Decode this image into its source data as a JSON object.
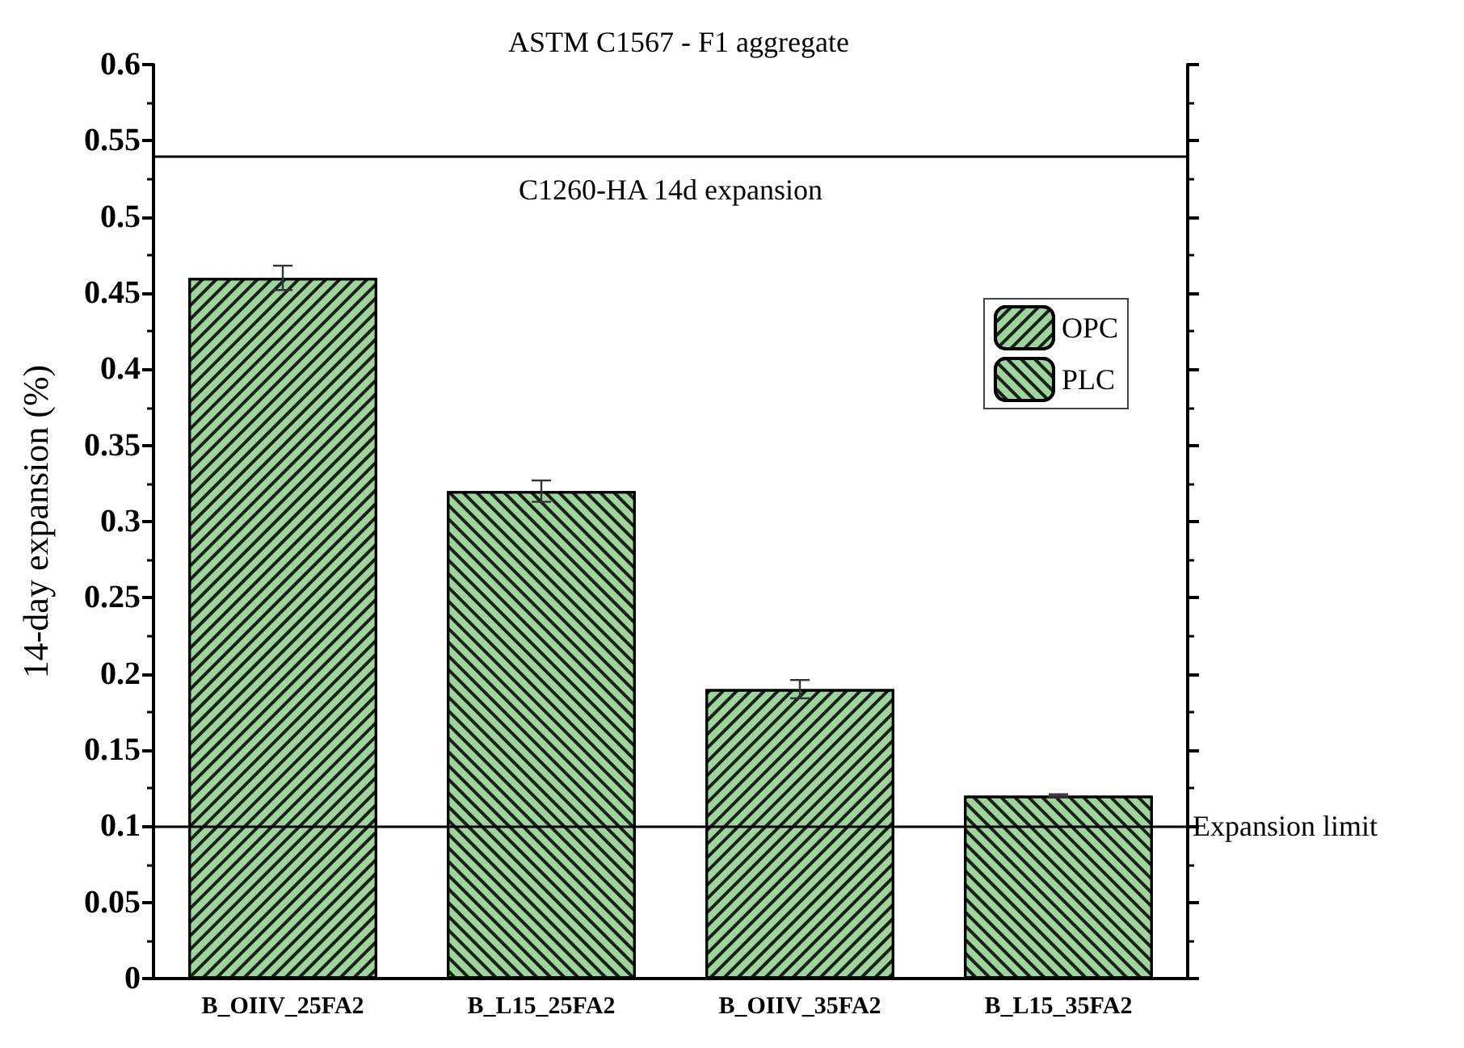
{
  "chart_data": {
    "type": "bar",
    "title": "ASTM C1567 - F1 aggregate",
    "ylabel": "14-day expansion (%)",
    "categories": [
      "B_OIIV_25FA2",
      "B_L15_25FA2",
      "B_OIIV_35FA2",
      "B_L15_35FA2"
    ],
    "stacked": true,
    "series": [
      {
        "name": "OPC",
        "color": "#9fd49f",
        "values": [
          0.46,
          null,
          0.19,
          null
        ],
        "errors": [
          0.008,
          null,
          0.006,
          null
        ]
      },
      {
        "name": "PLC",
        "color": "#9fd49f",
        "values": [
          null,
          0.32,
          null,
          0.12
        ],
        "errors": [
          null,
          0.007,
          null,
          0.001
        ]
      }
    ],
    "ylim": [
      0,
      0.6
    ],
    "yticks": [
      0,
      0.05,
      0.1,
      0.15,
      0.2,
      0.25,
      0.3,
      0.35,
      0.4,
      0.45,
      0.5,
      0.55,
      0.6
    ],
    "ref_lines": [
      {
        "axis": "y",
        "value": 0.54,
        "label": "C1260-HA 14d expansion",
        "color": "#000000"
      },
      {
        "axis": "y",
        "value": 0.1,
        "label": "Expansion limit",
        "color": "#000000"
      }
    ],
    "grid": false,
    "legend": "top right"
  }
}
